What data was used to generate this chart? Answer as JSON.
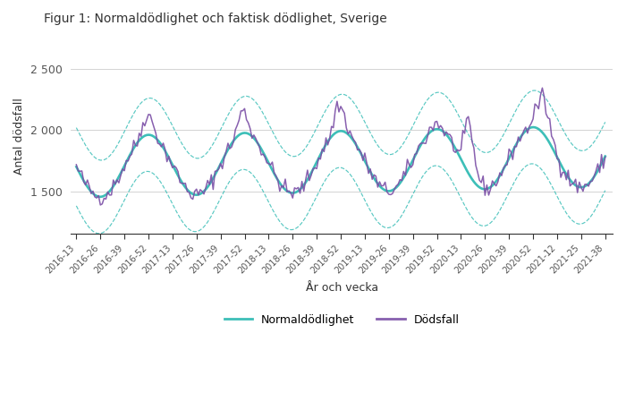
{
  "title": "Figur 1: Normaldödlighet och faktisk dödlighet, Sverige",
  "ylabel": "Antal dödsfall",
  "xlabel": "År och vecka",
  "legend_normal": "Normaldödlighet",
  "legend_actual": "Dödsfall",
  "color_normal": "#3dbfb8",
  "color_actual": "#7b4fa6",
  "color_ci": "#3dbfb8",
  "yticks": [
    1500,
    2000,
    2500
  ],
  "ytick_labels": [
    "1 500",
    "2 000",
    "2 500"
  ],
  "ylim": [
    1150,
    2750
  ],
  "background": "#ffffff",
  "tick_labels": [
    "2016-13",
    "2016-26",
    "2016-39",
    "2016-52",
    "2017-13",
    "2017-26",
    "2017-39",
    "2017-52",
    "2018-13",
    "2018-26",
    "2018-39",
    "2018-52",
    "2019-13",
    "2019-26",
    "2019-39",
    "2019-52",
    "2020-13",
    "2020-26",
    "2020-39",
    "2020-52",
    "2021-12",
    "2021-25",
    "2021-38"
  ]
}
